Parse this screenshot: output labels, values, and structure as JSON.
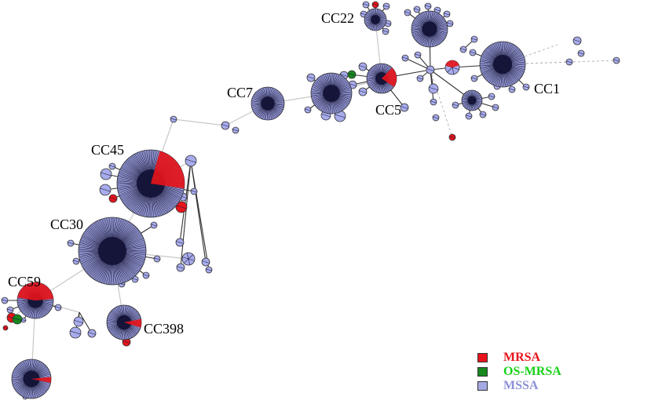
{
  "figure": {
    "clonal_complexes": [
      "CC22",
      "CC1",
      "CC5",
      "CC7",
      "CC45",
      "CC30",
      "CC59",
      "CC398"
    ]
  },
  "legend": {
    "items": [
      {
        "label": "MRSA",
        "color": "#e8141b"
      },
      {
        "label": "OS-MRSA",
        "color": "#17871f",
        "text_color": "#19d119"
      },
      {
        "label": "MSSA",
        "color": "#a5a9e3",
        "text_color": "#8c91d6"
      }
    ]
  },
  "colors": {
    "node_fill": "#a8acec",
    "hub_fill": "#15153a",
    "mrsa": "#e8141b",
    "os_mrsa": "#17871f"
  }
}
